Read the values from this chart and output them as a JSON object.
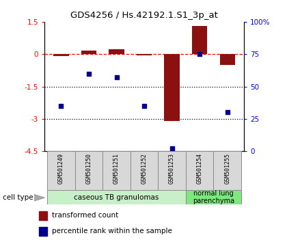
{
  "title": "GDS4256 / Hs.42192.1.S1_3p_at",
  "samples": [
    "GSM501249",
    "GSM501250",
    "GSM501251",
    "GSM501252",
    "GSM501253",
    "GSM501254",
    "GSM501255"
  ],
  "transformed_count": [
    -0.1,
    0.15,
    0.22,
    -0.05,
    -3.1,
    1.3,
    -0.5
  ],
  "percentile_rank": [
    35,
    60,
    57,
    35,
    2,
    75,
    30
  ],
  "ylim_left": [
    -4.5,
    1.5
  ],
  "ylim_right": [
    0,
    100
  ],
  "bar_color": "#8B1010",
  "dot_color": "#00008B",
  "cell_type_colors": [
    "#c8f0c8",
    "#7de87d"
  ],
  "cell_type_labels": [
    "caseous TB granulomas",
    "normal lung\nparenchyma"
  ],
  "cell_type_n_samples": [
    5,
    2
  ],
  "legend_bar_label": "transformed count",
  "legend_dot_label": "percentile rank within the sample",
  "cell_type_label": "cell type"
}
